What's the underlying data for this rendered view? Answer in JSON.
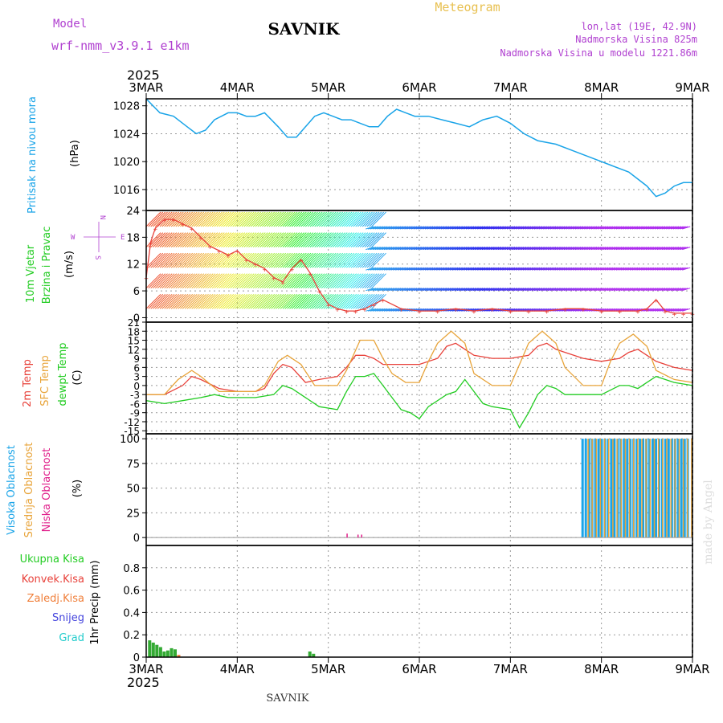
{
  "header": {
    "model_label": "Model",
    "model_name": "wrf-nmm_v3.9.1 e1km",
    "station": "SAVNIK",
    "product": "Meteogram",
    "coords": "lon,lat (19E, 42.9N)",
    "altitude": "Nadmorska Visina 825m",
    "model_altitude": "Nadmorska Visina u modelu 1221.86m",
    "year": "2025"
  },
  "footer": {
    "station": "SAVNIK",
    "year": "2025",
    "credit": "made by Angel"
  },
  "colors": {
    "pressure": "#1aa4e8",
    "temp2m": "#e8413a",
    "sfc": "#e8a43a",
    "dewpt": "#22cc22",
    "high_cloud": "#1aa4e8",
    "mid_cloud": "#e8a43a",
    "low_cloud": "#e01e8a",
    "total_precip": "#33aa33",
    "conv_precip": "#e8413a",
    "frozen": "#f07f3a",
    "snow": "#4444dd",
    "hail": "#22cccc",
    "label_purple": "#b040d0",
    "title_gold": "#e8c050",
    "panel_bg": "#ffffff"
  },
  "chart_data": [
    {
      "type": "line",
      "panel": "pressure",
      "ylabel_main": "Pritisak na nivou mora",
      "ylabel_unit": "(hPa)",
      "x_days": [
        "3MAR",
        "4MAR",
        "5MAR",
        "6MAR",
        "7MAR",
        "8MAR",
        "9MAR"
      ],
      "ylim": [
        1013,
        1029
      ],
      "yticks": [
        1016,
        1020,
        1024,
        1028
      ],
      "series": [
        {
          "x": [
            0,
            0.15,
            0.3,
            0.45,
            0.55,
            0.65,
            0.75,
            0.9,
            1.0,
            1.1,
            1.2,
            1.3,
            1.45,
            1.55,
            1.65,
            1.75,
            1.85,
            1.95,
            2.05,
            2.15,
            2.25,
            2.35,
            2.45,
            2.55,
            2.65,
            2.75,
            2.85,
            2.95,
            3.1,
            3.25,
            3.4,
            3.55,
            3.7,
            3.85,
            4.0,
            4.15,
            4.3,
            4.5,
            4.7,
            4.9,
            5.1,
            5.3,
            5.5,
            5.6,
            5.7,
            5.8,
            5.9,
            6.0
          ],
          "values": [
            1029,
            1027,
            1026.5,
            1025,
            1024,
            1024.5,
            1026,
            1027,
            1027,
            1026.5,
            1026.5,
            1027,
            1025,
            1023.5,
            1023.5,
            1025,
            1026.5,
            1027,
            1026.5,
            1026,
            1026,
            1025.5,
            1025,
            1025,
            1026.5,
            1027.5,
            1027,
            1026.5,
            1026.5,
            1026,
            1025.5,
            1025,
            1026,
            1026.5,
            1025.5,
            1024,
            1023,
            1022.5,
            1021.5,
            1020.5,
            1019.5,
            1018.5,
            1016.5,
            1015,
            1015.5,
            1016.5,
            1017,
            1017
          ]
        }
      ]
    },
    {
      "type": "line",
      "panel": "wind",
      "ylabel_main": "10m Vjetar",
      "ylabel_sub": "Brzina i Pravac",
      "ylabel_unit": "(m/s)",
      "compass": {
        "n": "N",
        "s": "S",
        "w": "W",
        "e": "E"
      },
      "ylim": [
        -1,
        24
      ],
      "yticks": [
        0,
        6,
        12,
        18,
        24
      ],
      "series": [
        {
          "name": "speed",
          "x": [
            0,
            0.05,
            0.1,
            0.2,
            0.3,
            0.4,
            0.5,
            0.6,
            0.7,
            0.8,
            0.9,
            1.0,
            1.1,
            1.2,
            1.3,
            1.4,
            1.5,
            1.6,
            1.7,
            1.8,
            1.9,
            2.0,
            2.1,
            2.2,
            2.3,
            2.4,
            2.5,
            2.6,
            2.8,
            3.0,
            3.2,
            3.4,
            3.6,
            3.8,
            4.0,
            4.2,
            4.4,
            4.6,
            4.8,
            5.0,
            5.2,
            5.4,
            5.5,
            5.6,
            5.7,
            5.8,
            5.9,
            6.0
          ],
          "values": [
            9,
            17,
            20,
            22,
            22,
            21,
            20,
            18,
            16,
            15,
            14,
            15,
            13,
            12,
            11,
            9,
            8,
            11,
            13,
            10,
            6,
            3,
            2,
            1.5,
            1.5,
            2,
            3,
            4,
            2,
            1.5,
            1.5,
            2,
            1.5,
            2,
            1.5,
            1.5,
            1.5,
            2,
            2,
            1.5,
            1.5,
            1.5,
            2,
            4,
            1.5,
            1,
            1,
            1
          ]
        }
      ]
    },
    {
      "type": "line",
      "panel": "temperature",
      "ylabel_lines": [
        "2m Temp",
        "SFC Temp",
        "dewpt Temp"
      ],
      "ylabel_unit": "(C)",
      "ylim": [
        -16,
        21
      ],
      "yticks": [
        -15,
        -12,
        -9,
        -6,
        -3,
        0,
        3,
        6,
        9,
        12,
        15,
        18,
        21
      ],
      "series": [
        {
          "name": "2m Temp",
          "x": [
            0,
            0.2,
            0.4,
            0.5,
            0.6,
            0.8,
            1.0,
            1.2,
            1.3,
            1.4,
            1.5,
            1.6,
            1.75,
            1.9,
            2.1,
            2.2,
            2.3,
            2.4,
            2.5,
            2.6,
            2.8,
            3.0,
            3.2,
            3.3,
            3.4,
            3.5,
            3.6,
            3.8,
            4.0,
            4.2,
            4.3,
            4.4,
            4.5,
            4.6,
            4.8,
            5.0,
            5.2,
            5.3,
            5.4,
            5.5,
            5.6,
            5.8,
            6.0
          ],
          "values": [
            -3,
            -3,
            0,
            3,
            2,
            -1,
            -2,
            -2,
            -1,
            4,
            7,
            6,
            1,
            2,
            3,
            6,
            10,
            10,
            9,
            7,
            7,
            7,
            9,
            13,
            14,
            12,
            10,
            9,
            9,
            10,
            13,
            14,
            12,
            11,
            9,
            8,
            9,
            11,
            12,
            10,
            8,
            6,
            5
          ]
        },
        {
          "name": "SFC Temp",
          "x": [
            0,
            0.2,
            0.35,
            0.5,
            0.6,
            0.8,
            1.0,
            1.2,
            1.3,
            1.45,
            1.55,
            1.7,
            1.85,
            2.0,
            2.1,
            2.2,
            2.35,
            2.5,
            2.6,
            2.7,
            2.85,
            3.0,
            3.1,
            3.2,
            3.35,
            3.5,
            3.6,
            3.8,
            4.0,
            4.1,
            4.2,
            4.35,
            4.5,
            4.6,
            4.8,
            5.0,
            5.1,
            5.2,
            5.35,
            5.5,
            5.6,
            5.8,
            6.0
          ],
          "values": [
            -3,
            -3,
            2,
            5,
            3,
            -2,
            -2,
            -2,
            0,
            8,
            10,
            7,
            0,
            0,
            0,
            5,
            15,
            15,
            9,
            4,
            1,
            1,
            8,
            14,
            18,
            14,
            4,
            0,
            0,
            7,
            14,
            18,
            14,
            6,
            0,
            0,
            8,
            14,
            17,
            13,
            5,
            2,
            1
          ]
        },
        {
          "name": "dewpt Temp",
          "x": [
            0,
            0.2,
            0.4,
            0.6,
            0.75,
            0.9,
            1.0,
            1.2,
            1.4,
            1.5,
            1.6,
            1.7,
            1.9,
            2.1,
            2.2,
            2.3,
            2.4,
            2.5,
            2.6,
            2.8,
            2.9,
            3.0,
            3.1,
            3.3,
            3.4,
            3.5,
            3.6,
            3.7,
            3.8,
            4.0,
            4.1,
            4.2,
            4.3,
            4.4,
            4.5,
            4.6,
            4.8,
            5.0,
            5.2,
            5.3,
            5.4,
            5.5,
            5.6,
            5.8,
            6.0
          ],
          "values": [
            -5,
            -6,
            -5,
            -4,
            -3,
            -4,
            -4,
            -4,
            -3,
            0,
            -1,
            -3,
            -7,
            -8,
            -2,
            3,
            3,
            4,
            0,
            -8,
            -9,
            -11,
            -7,
            -3,
            -2,
            2,
            -2,
            -6,
            -7,
            -8,
            -14,
            -9,
            -3,
            0,
            -1,
            -3,
            -3,
            -3,
            0,
            0,
            -1,
            1,
            3,
            1,
            0
          ]
        }
      ]
    },
    {
      "type": "bar",
      "panel": "cloud",
      "ylabel_lines": [
        "Visoka Oblacnost",
        "Srednja Oblacnost",
        "Niska Oblacnost"
      ],
      "ylabel_unit": "(%)",
      "ylim": [
        -8,
        105
      ],
      "yticks": [
        0,
        25,
        50,
        75,
        100
      ],
      "series": [
        {
          "name": "Visoka Oblacnost",
          "x_start": 4.78,
          "x_end": 5.95,
          "value": 100
        },
        {
          "name": "Srednja Oblacnost",
          "x_start": 4.82,
          "x_end": 5.98,
          "value": 100
        },
        {
          "name": "Niska Oblacnost",
          "points": [
            [
              2.2,
              4
            ],
            [
              2.32,
              3
            ],
            [
              2.36,
              3
            ]
          ]
        }
      ]
    },
    {
      "type": "bar",
      "panel": "precip",
      "ylabel_unit": "1hr Precip (mm)",
      "legend": [
        "Ukupna Kisa",
        "Konvek.Kisa",
        "Zaledj.Kisa",
        "Snijeg",
        "Grad"
      ],
      "ylim": [
        0,
        1.0
      ],
      "yticks": [
        0,
        0.2,
        0.4,
        0.6,
        0.8
      ],
      "series": [
        {
          "name": "Ukupna Kisa",
          "x": [
            0.02,
            0.06,
            0.1,
            0.14,
            0.18,
            0.22,
            0.26,
            0.3,
            1.78,
            1.82
          ],
          "values": [
            0.15,
            0.13,
            0.11,
            0.09,
            0.05,
            0.06,
            0.08,
            0.07,
            0.05,
            0.03
          ]
        },
        {
          "name": "Zaledj.Kisa",
          "x": [
            0.34
          ],
          "values": [
            0.02
          ]
        }
      ]
    }
  ]
}
